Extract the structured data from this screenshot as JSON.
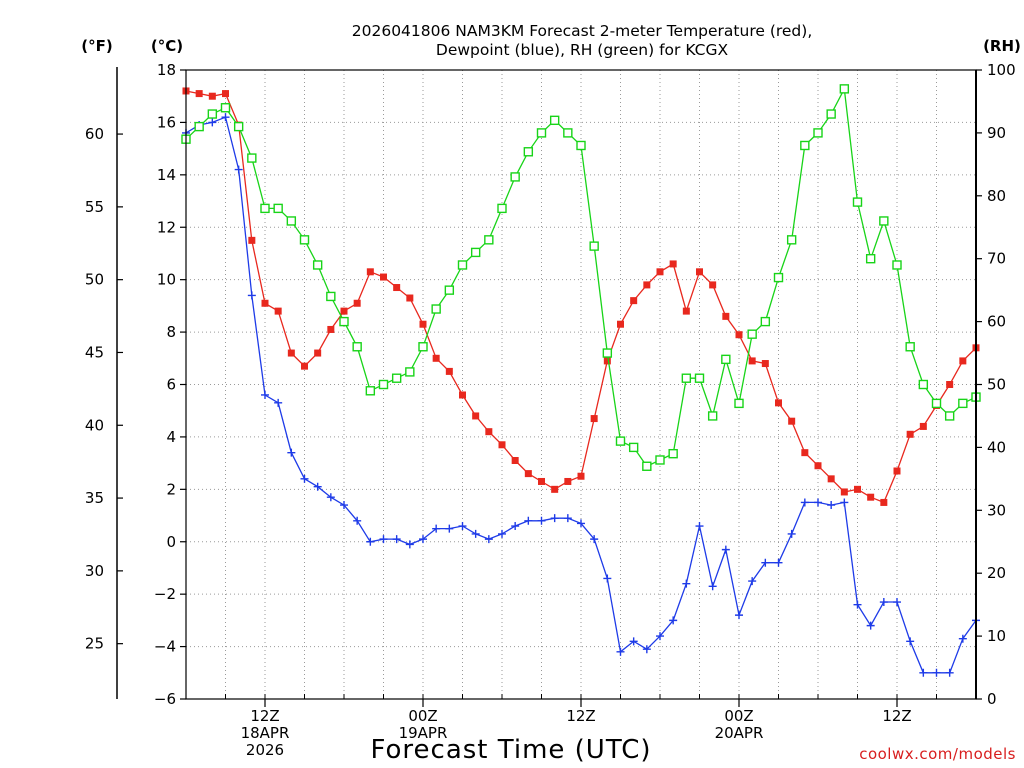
{
  "title_lines": [
    "2026041806 NAM3KM Forecast 2-meter Temperature (red),",
    "Dewpoint (blue), RH (green) for KCGX"
  ],
  "unit_labels": {
    "fahrenheit": "(°F)",
    "celsius": "(°C)",
    "rh": "(RH)"
  },
  "x_axis_label": "Forecast Time (UTC)",
  "credit": "coolwx.com/models",
  "colors": {
    "temperature": "#e8281e",
    "dewpoint": "#1e3be8",
    "rh": "#18d418",
    "grid": "#9a9a9a",
    "axis": "#000000"
  },
  "chart_data": {
    "type": "line",
    "title": "2026041806 NAM3KM Forecast 2-meter Temperature (red), Dewpoint (blue), RH (green) for KCGX",
    "xlabel": "Forecast Time (UTC)",
    "ylabel_left": "(°C)",
    "ylabel_right": "(RH)",
    "ylabel_far_left": "(°F)",
    "x_unit": "forecast hour (0 = 2026-04-18 06Z)",
    "xlim": [
      0,
      60
    ],
    "ylim_celsius": [
      -6,
      18
    ],
    "ylim_rh": [
      0,
      100
    ],
    "celsius_ticks": [
      -6,
      -4,
      -2,
      0,
      2,
      4,
      6,
      8,
      10,
      12,
      14,
      16,
      18
    ],
    "fahrenheit_ticks": [
      25,
      30,
      35,
      40,
      45,
      50,
      55,
      60
    ],
    "rh_ticks": [
      0,
      10,
      20,
      30,
      40,
      50,
      60,
      70,
      80,
      90,
      100
    ],
    "x_ticks": [
      {
        "hour": 6,
        "lines": [
          "12Z",
          "18APR",
          "2026"
        ]
      },
      {
        "hour": 18,
        "lines": [
          "00Z",
          "19APR"
        ]
      },
      {
        "hour": 30,
        "lines": [
          "12Z"
        ]
      },
      {
        "hour": 42,
        "lines": [
          "00Z",
          "20APR"
        ]
      },
      {
        "hour": 54,
        "lines": [
          "12Z"
        ]
      }
    ],
    "x": [
      0,
      1,
      2,
      3,
      4,
      5,
      6,
      7,
      8,
      9,
      10,
      11,
      12,
      13,
      14,
      15,
      16,
      17,
      18,
      19,
      20,
      21,
      22,
      23,
      24,
      25,
      26,
      27,
      28,
      29,
      30,
      31,
      32,
      33,
      34,
      35,
      36,
      37,
      38,
      39,
      40,
      41,
      42,
      43,
      44,
      45,
      46,
      47,
      48,
      49,
      50,
      51,
      52,
      53,
      54,
      55,
      56,
      57,
      58,
      59,
      60
    ],
    "series": [
      {
        "name": "2-meter Temperature",
        "unit": "°C",
        "axis": "celsius",
        "color": "#e8281e",
        "marker": "filled-square",
        "values": [
          17.2,
          17.1,
          17.0,
          17.1,
          15.9,
          11.5,
          9.1,
          8.8,
          7.2,
          6.7,
          7.2,
          8.1,
          8.8,
          9.1,
          10.3,
          10.1,
          9.7,
          9.3,
          8.3,
          7.0,
          6.5,
          5.6,
          4.8,
          4.2,
          3.7,
          3.1,
          2.6,
          2.3,
          2.0,
          2.3,
          2.5,
          4.7,
          6.9,
          8.3,
          9.2,
          9.8,
          10.3,
          10.6,
          8.8,
          10.3,
          9.8,
          8.6,
          7.9,
          6.9,
          6.8,
          5.3,
          4.6,
          3.4,
          2.9,
          2.4,
          1.9,
          2.0,
          1.7,
          1.5,
          2.7,
          4.1,
          4.4,
          5.2,
          6.0,
          6.9,
          7.4
        ]
      },
      {
        "name": "Dewpoint",
        "unit": "°C",
        "axis": "celsius",
        "color": "#1e3be8",
        "marker": "plus",
        "values": [
          15.6,
          15.9,
          16.0,
          16.2,
          14.2,
          9.4,
          5.6,
          5.3,
          3.4,
          2.4,
          2.1,
          1.7,
          1.4,
          0.8,
          0.0,
          0.1,
          0.1,
          -0.1,
          0.1,
          0.5,
          0.5,
          0.6,
          0.3,
          0.1,
          0.3,
          0.6,
          0.8,
          0.8,
          0.9,
          0.9,
          0.7,
          0.1,
          -1.4,
          -4.2,
          -3.8,
          -4.1,
          -3.6,
          -3.0,
          -1.6,
          0.6,
          -1.7,
          -0.3,
          -2.8,
          -1.5,
          -0.8,
          -0.8,
          0.3,
          1.5,
          1.5,
          1.4,
          1.5,
          -2.4,
          -3.2,
          -2.3,
          -2.3,
          -3.8,
          -5.0,
          -5.0,
          -5.0,
          -3.7,
          -3.0
        ]
      },
      {
        "name": "Relative Humidity",
        "unit": "%",
        "axis": "rh",
        "color": "#18d418",
        "marker": "open-square",
        "values": [
          89,
          91,
          93,
          94,
          91,
          86,
          78,
          78,
          76,
          73,
          69,
          64,
          60,
          56,
          49,
          50,
          51,
          52,
          56,
          62,
          65,
          69,
          71,
          73,
          78,
          83,
          87,
          90,
          92,
          90,
          88,
          72,
          55,
          41,
          40,
          37,
          38,
          39,
          51,
          51,
          45,
          54,
          47,
          58,
          60,
          67,
          73,
          88,
          90,
          93,
          97,
          79,
          70,
          76,
          69,
          56,
          50,
          47,
          45,
          47,
          48
        ]
      }
    ]
  }
}
